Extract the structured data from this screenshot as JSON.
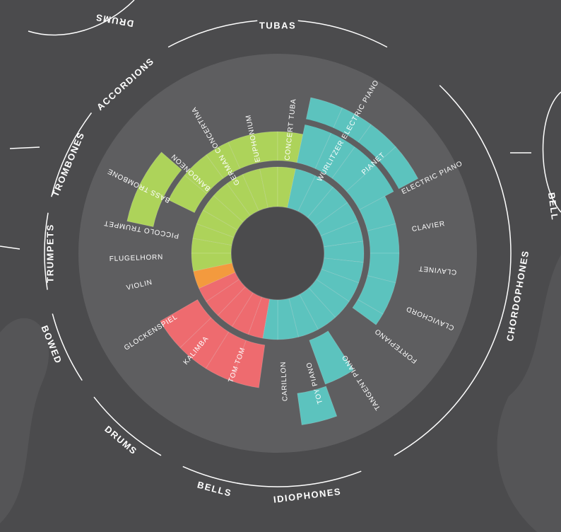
{
  "colors": {
    "background": "#4b4b4d",
    "blob": "#555557",
    "disc": "#5e5e60",
    "hole": "#4b4b4d",
    "green": "#add35a",
    "teal": "#5cc3be",
    "red": "#ee6b6f",
    "orange": "#f39a3e",
    "line": "#ffffff"
  },
  "categories": [
    {
      "name": "TUBAS",
      "angle": 0
    },
    {
      "name": "ACCORDIONS",
      "angle": -42
    },
    {
      "name": "TROMBONES",
      "angle": -67
    },
    {
      "name": "TRUMPETS",
      "angle": -90
    },
    {
      "name": "BOWED",
      "angle": -112
    },
    {
      "name": "DRUMS",
      "angle": -140
    },
    {
      "name": "BELLS",
      "angle": -165
    },
    {
      "name": "IDIOPHONES",
      "angle": 173
    },
    {
      "name": "CHORDOPHONES",
      "angle": 100
    }
  ],
  "side_labels": [
    {
      "name": "DRUMS",
      "x": 162,
      "y": 28,
      "rot": 190
    },
    {
      "name": "BELL",
      "x": 782,
      "y": 292,
      "rot": 82
    }
  ],
  "instruments": [
    {
      "name": "CONCERT TUBA",
      "angle": 6,
      "r": 132
    },
    {
      "name": "EUPHONIUM",
      "angle": -12,
      "r": 132
    },
    {
      "name": "GERMAN CONCERTINA",
      "angle": -30,
      "r": 112
    },
    {
      "name": "BANDONEON",
      "angle": -47,
      "r": 132
    },
    {
      "name": "BASS TROMBONE",
      "angle": -64,
      "r": 170
    },
    {
      "name": "PICCOLO TRUMPET",
      "angle": -80,
      "r": 142
    },
    {
      "name": "FLUGELHORN",
      "angle": -92,
      "r": 162
    },
    {
      "name": "VIOLIN",
      "angle": -103,
      "r": 182
    },
    {
      "name": "GLOCKENSPIEL",
      "angle": -122,
      "r": 168
    },
    {
      "name": "KALIMBA",
      "angle": -140,
      "r": 155
    },
    {
      "name": "TOM TOM",
      "angle": -160,
      "r": 142
    },
    {
      "name": "CARILLON",
      "angle": 177,
      "r": 153
    },
    {
      "name": "TOY PIANO",
      "angle": 164,
      "r": 160
    },
    {
      "name": "TANGENT PIANO",
      "angle": 147,
      "r": 172
    },
    {
      "name": "FORTEPIANO",
      "angle": 128,
      "r": 176
    },
    {
      "name": "CLAVICHORD",
      "angle": 113,
      "r": 198
    },
    {
      "name": "CLAVINET",
      "angle": 96,
      "r": 200
    },
    {
      "name": "CLAVIER",
      "angle": 80,
      "r": 193
    },
    {
      "name": "ELECTRIC PIANO",
      "angle": 64,
      "r": 196
    },
    {
      "name": "PIANET",
      "angle": 47,
      "r": 165
    },
    {
      "name": "WURLITZER ELECTRIC PIANO",
      "angle": 30,
      "r": 118
    }
  ]
}
